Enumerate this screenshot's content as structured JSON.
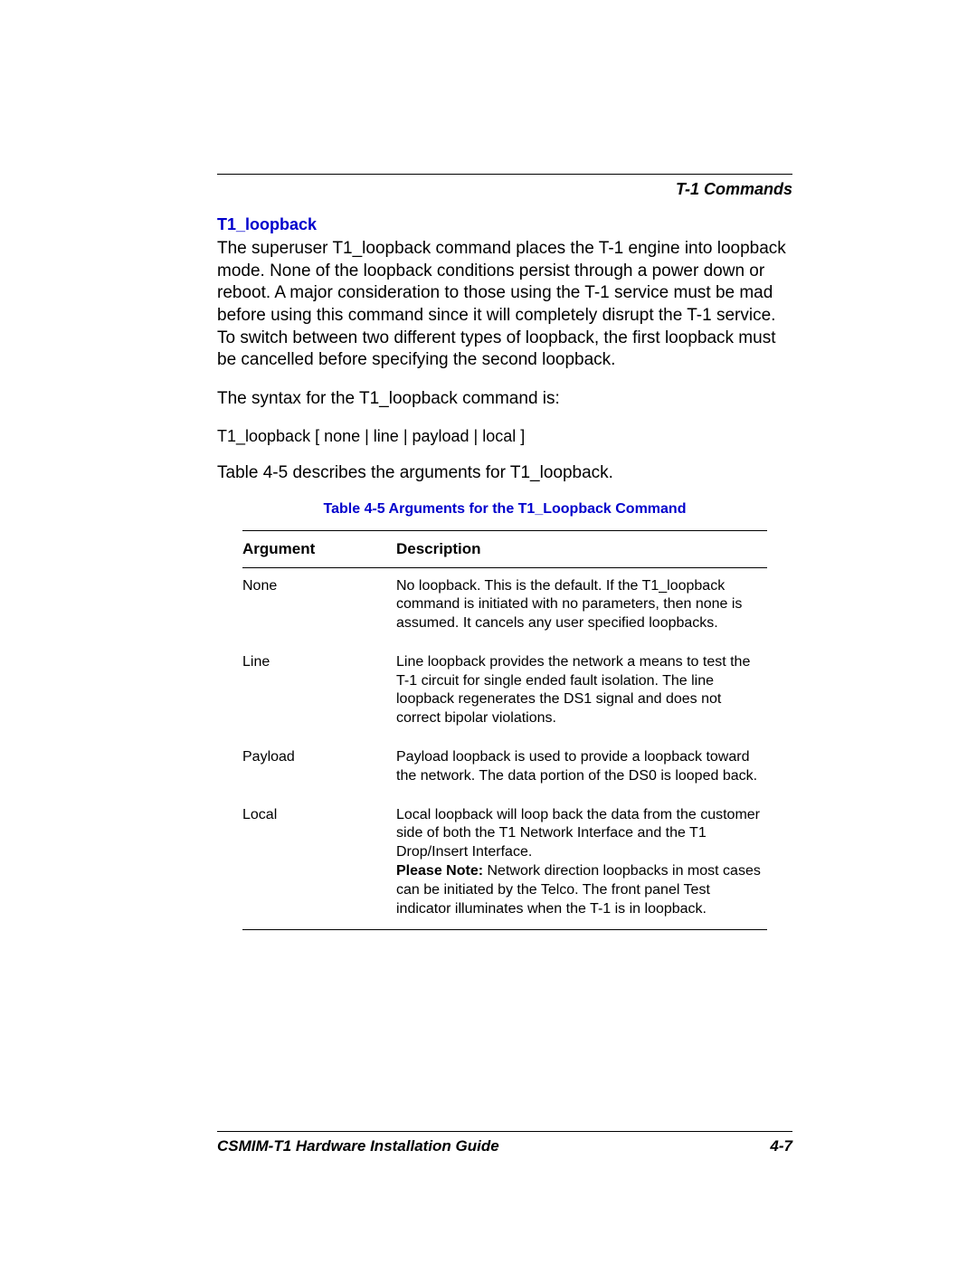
{
  "header": {
    "section_title": "T-1 Commands"
  },
  "section": {
    "heading": "T1_loopback",
    "para1": "The superuser T1_loopback command places the T-1 engine into loopback mode. None of the loopback conditions persist through a power down or reboot. A major consideration to those using the T-1 service must be mad before using this command since it will completely disrupt the T-1 service. To switch between two different types of loopback, the first loopback must be cancelled before specifying the second loopback.",
    "para2": "The syntax for the T1_loopback command is:",
    "syntax": "T1_loopback [ none | line | payload | local ]",
    "para3": "Table 4-5     describes the arguments for T1_loopback."
  },
  "table": {
    "caption": "Table 4-5   Arguments for the T1_Loopback Command",
    "col1": "Argument",
    "col2": "Description",
    "rows": [
      {
        "arg": "None",
        "desc": "No loopback. This is the default. If the T1_loopback command is initiated with no parameters, then none is assumed. It cancels any user specified loopbacks."
      },
      {
        "arg": "Line",
        "desc": "Line loopback provides the network a means to test the T-1 circuit for single ended fault isolation. The line loopback regenerates the DS1 signal and does not correct bipolar violations."
      },
      {
        "arg": "Payload",
        "desc": "Payload loopback is used to provide a loopback toward the network. The data portion of the DS0 is looped back."
      },
      {
        "arg": "Local",
        "desc_pre": "Local loopback will loop back the data from the customer side of both the T1 Network Interface and the T1 Drop/Insert Interface.",
        "note_label": "Please Note:",
        "desc_post": " Network direction loopbacks in most cases can be initiated by the Telco. The front panel Test indicator illuminates when the T-1 is in loopback."
      }
    ]
  },
  "footer": {
    "left": "CSMIM-T1 Hardware Installation Guide",
    "right": "4-7"
  }
}
